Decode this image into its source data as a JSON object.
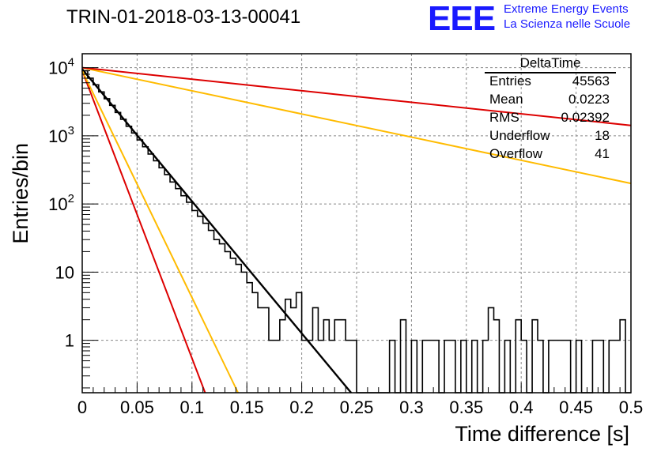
{
  "header": {
    "title": "TRIN-01-2018-03-13-00041"
  },
  "logo": {
    "mark": "EEE",
    "line1": "Extreme Energy Events",
    "line2": "La Scienza nelle Scuole",
    "color": "#1a1aff"
  },
  "stats": {
    "title": "DeltaTime",
    "rows": [
      {
        "label": "Entries",
        "value": "45563"
      },
      {
        "label": "Mean",
        "value": "0.0223"
      },
      {
        "label": "RMS",
        "value": "0.02392"
      },
      {
        "label": "Underflow",
        "value": "18"
      },
      {
        "label": "Overflow",
        "value": "41"
      }
    ]
  },
  "chart_data": {
    "type": "line",
    "title": "TRIN-01-2018-03-13-00041",
    "xlabel": "Time difference [s]",
    "ylabel": "Entries/bin",
    "xlim": [
      0,
      0.5
    ],
    "ylim": [
      0.17,
      16000
    ],
    "yscale": "log",
    "grid": true,
    "legend": "none",
    "x_ticks": [
      {
        "value": 0,
        "label": "0"
      },
      {
        "value": 0.05,
        "label": "0.05"
      },
      {
        "value": 0.1,
        "label": "0.1"
      },
      {
        "value": 0.15,
        "label": "0.15"
      },
      {
        "value": 0.2,
        "label": "0.2"
      },
      {
        "value": 0.25,
        "label": "0.25"
      },
      {
        "value": 0.3,
        "label": "0.3"
      },
      {
        "value": 0.35,
        "label": "0.35"
      },
      {
        "value": 0.4,
        "label": "0.4"
      },
      {
        "value": 0.45,
        "label": "0.45"
      },
      {
        "value": 0.5,
        "label": "0.5"
      }
    ],
    "y_ticks": [
      {
        "value": 1,
        "base": "1",
        "exp": ""
      },
      {
        "value": 10,
        "base": "10",
        "exp": ""
      },
      {
        "value": 100,
        "base": "10",
        "exp": "2"
      },
      {
        "value": 1000,
        "base": "10",
        "exp": "3"
      },
      {
        "value": 10000,
        "base": "10",
        "exp": "4"
      }
    ],
    "histogram": {
      "bin_width": 0.005,
      "color": "#000000",
      "values": [
        9000,
        7000,
        5600,
        4400,
        3500,
        2800,
        2200,
        1750,
        1380,
        1100,
        870,
        690,
        540,
        430,
        340,
        270,
        210,
        168,
        132,
        106,
        80,
        66,
        52,
        41,
        30,
        26,
        20,
        16,
        13,
        10,
        7,
        5,
        3,
        3,
        1,
        1,
        2,
        4,
        3,
        5,
        1,
        1,
        3,
        1,
        2,
        1,
        2,
        2,
        1,
        1,
        0,
        0,
        0,
        0,
        0,
        0,
        1,
        0,
        2,
        0,
        1,
        0,
        1,
        1,
        1,
        0,
        1,
        1,
        0,
        1,
        0,
        1,
        0,
        1,
        3,
        2,
        0,
        1,
        0,
        2,
        1,
        0,
        2,
        1,
        0,
        1,
        1,
        1,
        1,
        0,
        1,
        0,
        0,
        1,
        1,
        0,
        1,
        1,
        2,
        0
      ]
    },
    "fits": [
      {
        "color": "#000000",
        "x": [
          0,
          0.245
        ],
        "y": [
          9500,
          0.17
        ]
      },
      {
        "color": "#dd0000",
        "x": [
          0,
          0.112
        ],
        "y": [
          9000,
          0.17
        ]
      },
      {
        "color": "#ffbb00",
        "x": [
          0,
          0.142
        ],
        "y": [
          9000,
          0.17
        ]
      },
      {
        "color": "#ffbb00",
        "x": [
          0,
          0.5
        ],
        "y": [
          10000,
          200
        ]
      },
      {
        "color": "#dd0000",
        "x": [
          0,
          0.5
        ],
        "y": [
          10000,
          1420
        ]
      }
    ]
  }
}
